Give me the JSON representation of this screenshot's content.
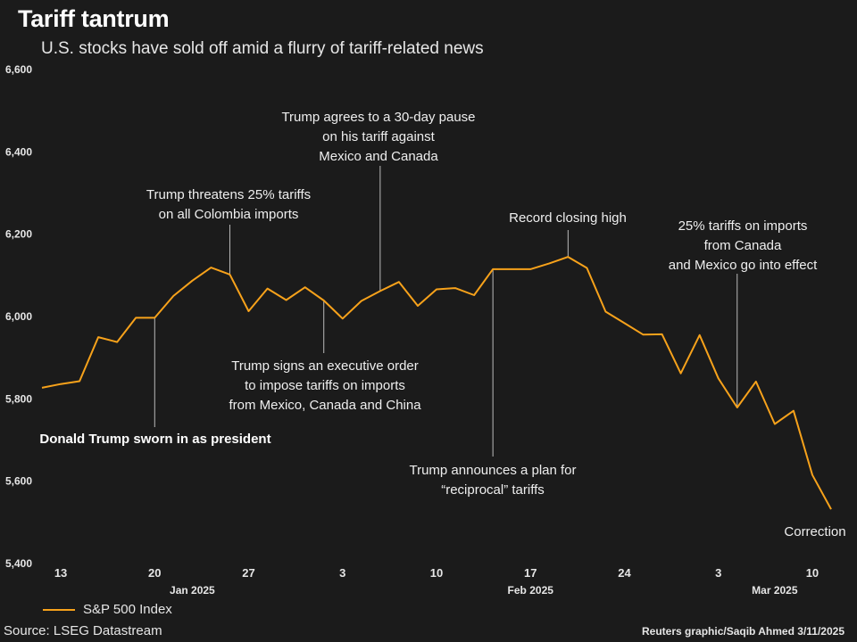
{
  "header": {
    "title": "Tariff tantrum",
    "subtitle": "U.S. stocks have sold off amid a flurry of tariff-related news"
  },
  "footer": {
    "legend_label": "S&P 500 Index",
    "source": "Source: LSEG Datastream",
    "credit": "Reuters graphic/Saqib Ahmed 3/11/2025"
  },
  "colors": {
    "background": "#1b1b1b",
    "line": "#f7a21b",
    "text": "#e6e6e6",
    "leader": "#bbbbbb"
  },
  "chart_data": {
    "type": "line",
    "title": "Tariff tantrum",
    "subtitle": "U.S. stocks have sold off amid a flurry of tariff-related news",
    "xlabel": "",
    "ylabel": "",
    "ylim": [
      5400,
      6600
    ],
    "y_ticks": [
      {
        "value": 5400,
        "label": "5,400"
      },
      {
        "value": 5600,
        "label": "5,600"
      },
      {
        "value": 5800,
        "label": "5,800"
      },
      {
        "value": 6000,
        "label": "6,000"
      },
      {
        "value": 6200,
        "label": "6,200"
      },
      {
        "value": 6400,
        "label": "6,400"
      },
      {
        "value": 6600,
        "label": "6,600"
      }
    ],
    "x_ticks": [
      {
        "index": 1,
        "label": "13"
      },
      {
        "index": 6,
        "label": "20"
      },
      {
        "index": 11,
        "label": "27"
      },
      {
        "index": 16,
        "label": "3"
      },
      {
        "index": 21,
        "label": "10"
      },
      {
        "index": 26,
        "label": "17"
      },
      {
        "index": 31,
        "label": "24"
      },
      {
        "index": 36,
        "label": "3"
      },
      {
        "index": 41,
        "label": "10"
      }
    ],
    "month_labels": [
      {
        "index": 8,
        "label": "Jan 2025"
      },
      {
        "index": 26,
        "label": "Feb 2025"
      },
      {
        "index": 39,
        "label": "Mar 2025"
      }
    ],
    "series": [
      {
        "name": "S&P 500 Index",
        "values": [
          5827,
          5836,
          5843,
          5950,
          5938,
          5997,
          5997,
          6050,
          6087,
          6119,
          6102,
          6013,
          6068,
          6040,
          6071,
          6039,
          5995,
          6038,
          6062,
          6084,
          6026,
          6066,
          6069,
          6052,
          6115,
          6115,
          6115,
          6129,
          6145,
          6118,
          6012,
          5984,
          5956,
          5957,
          5862,
          5955,
          5850,
          5779,
          5842,
          5739,
          5771,
          5615,
          5532
        ]
      }
    ],
    "annotations": [
      {
        "index": 6,
        "lines": [
          "Donald Trump sworn in as president"
        ],
        "bold": true
      },
      {
        "index": 10,
        "lines": [
          "Trump threatens 25% tariffs",
          "on all Colombia imports"
        ],
        "bold": false
      },
      {
        "index": 15,
        "lines": [
          "Trump signs an executive order",
          "to impose tariffs on imports",
          "from Mexico, Canada and China"
        ],
        "bold": false
      },
      {
        "index": 18,
        "lines": [
          "Trump agrees to a 30-day pause",
          "on his tariff against",
          "Mexico and Canada"
        ],
        "bold": false
      },
      {
        "index": 24,
        "lines": [
          "Trump announces a plan for",
          "“reciprocal” tariffs"
        ],
        "bold": false
      },
      {
        "index": 28,
        "lines": [
          "Record closing high"
        ],
        "bold": false
      },
      {
        "index": 37,
        "lines": [
          "25% tariffs on imports",
          "from Canada",
          "and Mexico go into effect"
        ],
        "bold": false
      },
      {
        "index": 42,
        "lines": [
          "Correction"
        ],
        "bold": false
      }
    ]
  }
}
